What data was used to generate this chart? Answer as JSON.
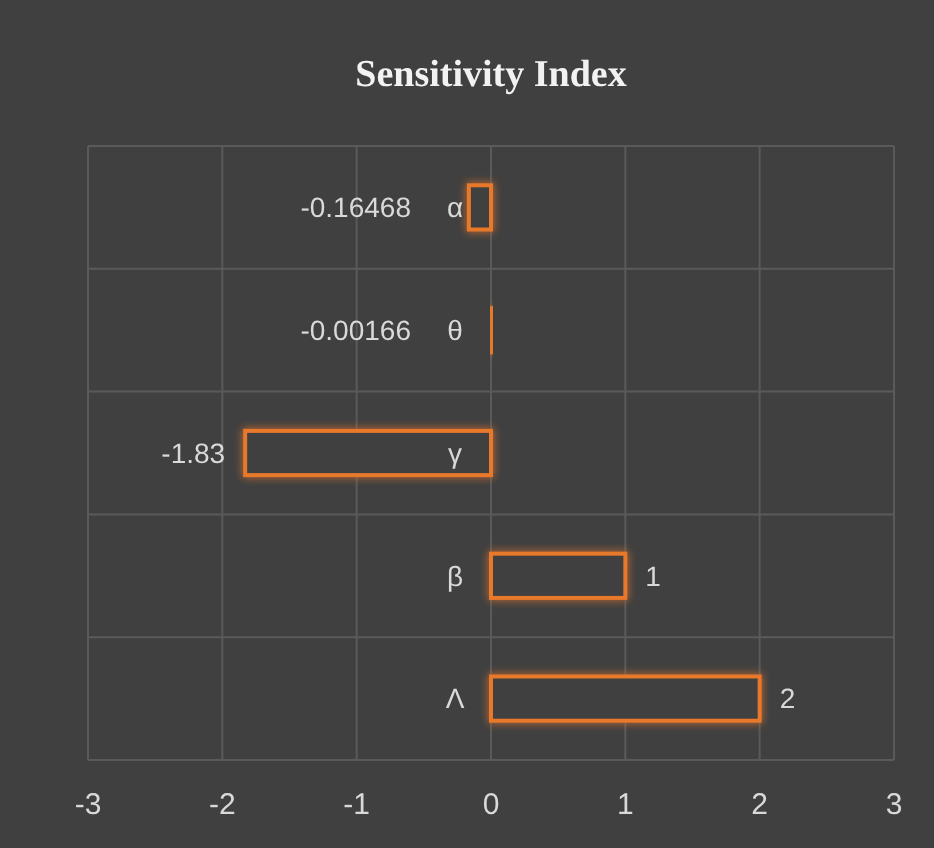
{
  "chart_data": {
    "type": "bar",
    "orientation": "horizontal",
    "title": "Sensitivity Index",
    "categories": [
      "α",
      "θ",
      "γ",
      "β",
      "Λ"
    ],
    "values": [
      -0.16468,
      -0.00166,
      -1.83,
      1,
      2
    ],
    "color": "#e8782c",
    "xlim": [
      -3,
      3
    ],
    "xticks": [
      -3,
      -2,
      -1,
      0,
      1,
      2,
      3
    ],
    "grid": true,
    "data_labels": true
  }
}
